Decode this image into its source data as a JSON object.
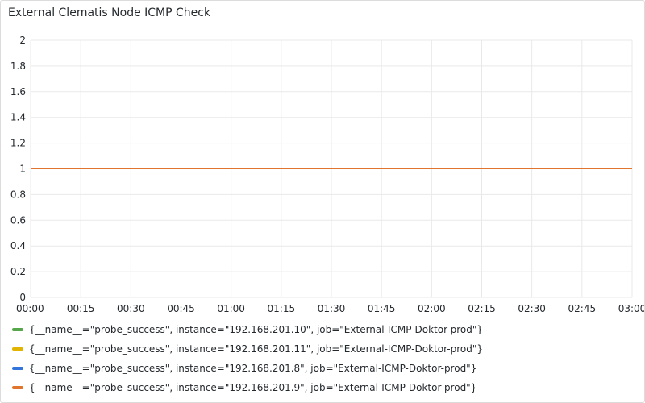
{
  "panel": {
    "title": "External Clematis Node ICMP Check"
  },
  "chart_data": {
    "type": "line",
    "title": "External Clematis Node ICMP Check",
    "xlabel": "",
    "ylabel": "",
    "x_ticks": [
      "00:00",
      "00:15",
      "00:30",
      "00:45",
      "01:00",
      "01:15",
      "01:30",
      "01:45",
      "02:00",
      "02:15",
      "02:30",
      "02:45",
      "03:00"
    ],
    "y_ticks": [
      "0",
      "0.2",
      "0.4",
      "0.6",
      "0.8",
      "1",
      "1.2",
      "1.4",
      "1.6",
      "1.8",
      "2"
    ],
    "ylim": [
      0,
      2
    ],
    "xlim": [
      "00:00",
      "03:00"
    ],
    "grid": true,
    "legend_placement": "bottom",
    "x": [
      "00:00",
      "03:00"
    ],
    "series": [
      {
        "name": "{__name__=\"probe_success\", instance=\"192.168.201.10\", job=\"External-ICMP-Doktor-prod\"}",
        "color": "#56a64b",
        "values": [
          1,
          1
        ]
      },
      {
        "name": "{__name__=\"probe_success\", instance=\"192.168.201.11\", job=\"External-ICMP-Doktor-prod\"}",
        "color": "#e0b400",
        "values": [
          1,
          1
        ]
      },
      {
        "name": "{__name__=\"probe_success\", instance=\"192.168.201.8\", job=\"External-ICMP-Doktor-prod\"}",
        "color": "#3274d9",
        "values": [
          1,
          1
        ]
      },
      {
        "name": "{__name__=\"probe_success\", instance=\"192.168.201.9\", job=\"External-ICMP-Doktor-prod\"}",
        "color": "#e0752d",
        "values": [
          1,
          1
        ]
      }
    ]
  }
}
